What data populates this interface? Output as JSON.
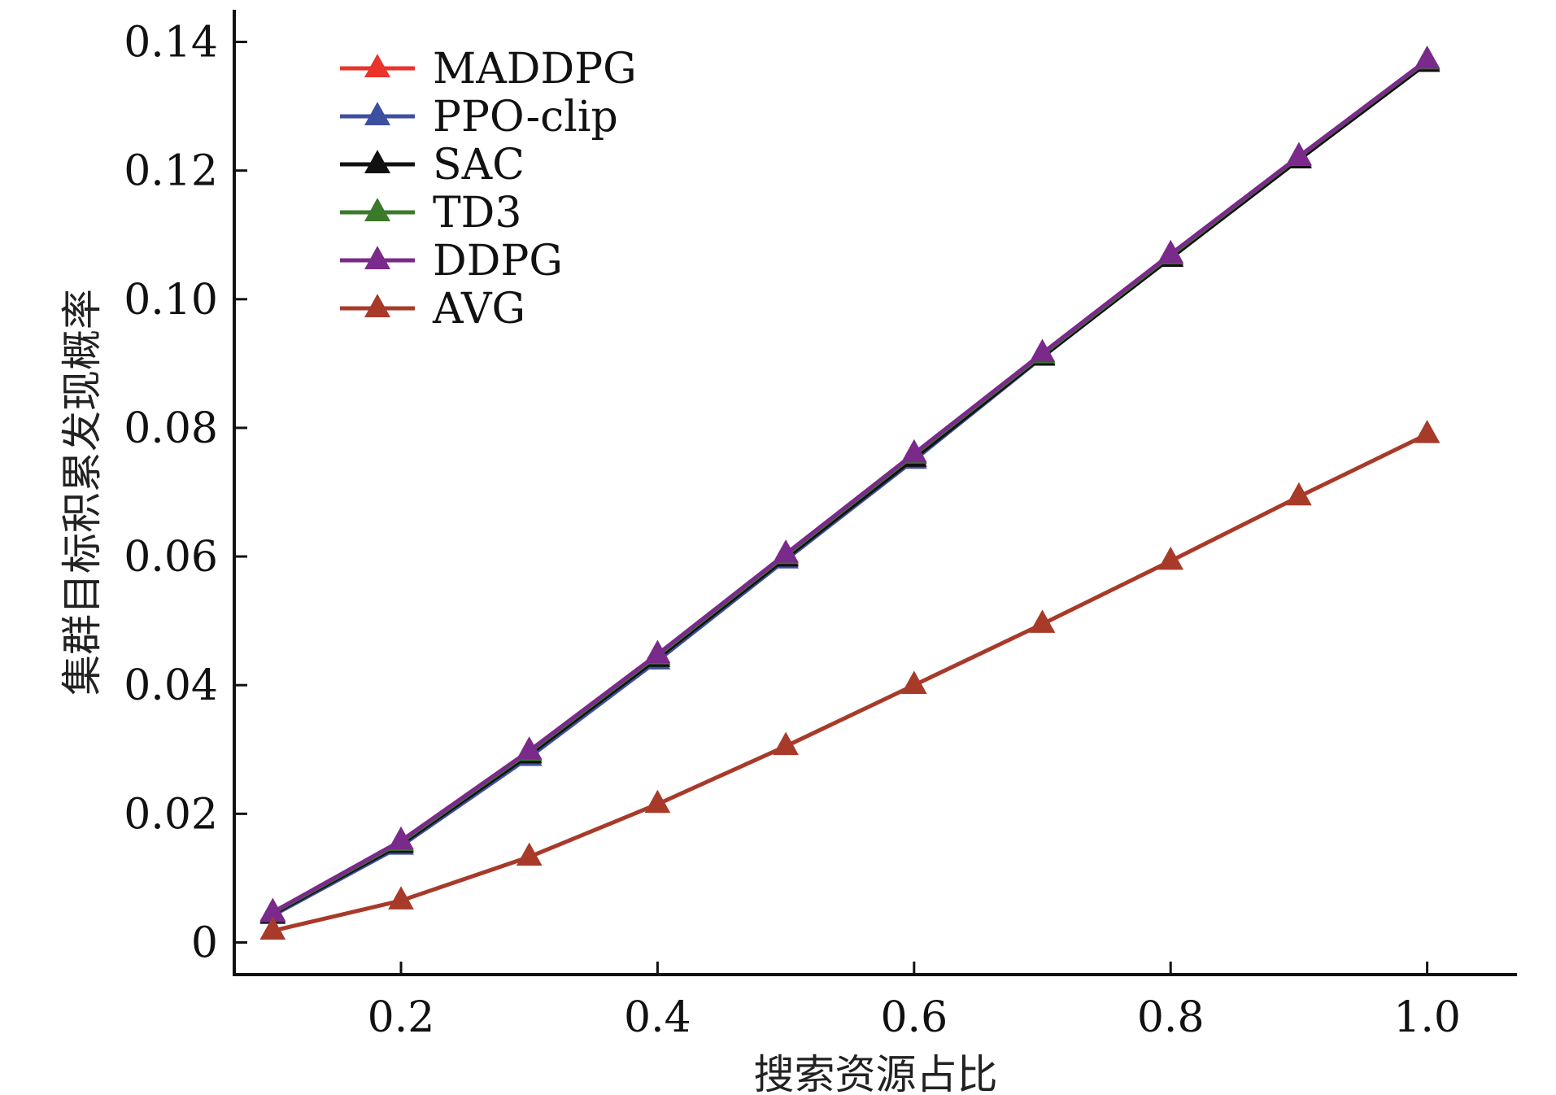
{
  "chart_data": {
    "type": "line",
    "title": "",
    "xlabel": "搜索资源占比",
    "ylabel": "集群目标积累发现概率",
    "xlim": [
      0.07,
      1.07
    ],
    "ylim": [
      -0.005,
      0.145
    ],
    "xticks": [
      0.2,
      0.4,
      0.6,
      0.8,
      1.0
    ],
    "xtick_labels": [
      "0.2",
      "0.4",
      "0.6",
      "0.8",
      "1.0"
    ],
    "yticks": [
      0,
      0.02,
      0.04,
      0.06,
      0.08,
      0.1,
      0.12,
      0.14
    ],
    "ytick_labels": [
      "0",
      "0.02",
      "0.04",
      "0.06",
      "0.08",
      "0.10",
      "0.12",
      "0.14"
    ],
    "legend_position": "top-left",
    "grid": false,
    "x": [
      0.1,
      0.2,
      0.3,
      0.4,
      0.5,
      0.6,
      0.7,
      0.8,
      0.9,
      1.0
    ],
    "series": [
      {
        "name": "MADDPG",
        "color": "#e8342a",
        "values": [
          0.0045,
          0.0155,
          0.0295,
          0.0445,
          0.06,
          0.0757,
          0.0913,
          0.1067,
          0.122,
          0.137
        ]
      },
      {
        "name": "PPO-clip",
        "color": "#3c4fa0",
        "values": [
          0.0042,
          0.015,
          0.0288,
          0.0438,
          0.0595,
          0.075,
          0.091,
          0.1065,
          0.1218,
          0.1368
        ]
      },
      {
        "name": "SAC",
        "color": "#111111",
        "values": [
          0.0044,
          0.0153,
          0.0292,
          0.0442,
          0.0598,
          0.0753,
          0.0911,
          0.1064,
          0.1217,
          0.1367
        ]
      },
      {
        "name": "TD3",
        "color": "#3a7a2a",
        "values": [
          0.0046,
          0.0156,
          0.0296,
          0.0446,
          0.0602,
          0.0758,
          0.0914,
          0.1068,
          0.1221,
          0.1371
        ]
      },
      {
        "name": "DDPG",
        "color": "#7a2a8a",
        "values": [
          0.0047,
          0.0158,
          0.0298,
          0.0448,
          0.0604,
          0.076,
          0.0916,
          0.107,
          0.1222,
          0.1372
        ]
      },
      {
        "name": "AVG",
        "color": "#a83a2a",
        "values": [
          0.0018,
          0.0065,
          0.0133,
          0.0215,
          0.0305,
          0.04,
          0.0495,
          0.0593,
          0.0693,
          0.079
        ]
      }
    ]
  }
}
